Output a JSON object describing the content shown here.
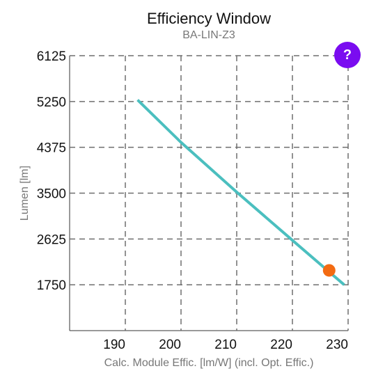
{
  "header": {
    "title": "Efficiency Window",
    "subtitle": "BA-LIN-Z3"
  },
  "help_button": {
    "label": "?"
  },
  "colors": {
    "line": "#4bbfbf",
    "marker": "#f36b12",
    "grid": "#6e6e6e",
    "help": "#7a0cf0"
  },
  "chart_data": {
    "type": "line",
    "title": "Efficiency Window",
    "subtitle": "BA-LIN-Z3",
    "xlabel": "Calc. Module Effic. [lm/W] (incl. Opt. Effic.)",
    "ylabel": "Lumen [lm]",
    "xlim": [
      180,
      230
    ],
    "ylim": [
      875,
      6125
    ],
    "x_ticks": [
      190,
      200,
      210,
      220,
      230
    ],
    "y_ticks": [
      1750,
      2625,
      3500,
      4375,
      5250,
      6125
    ],
    "grid": true,
    "series": [
      {
        "x": [
          192.2,
          200,
          210,
          220,
          229.3
        ],
        "y": [
          5280,
          4470,
          3520,
          2600,
          1750
        ]
      }
    ],
    "highlight_point": {
      "x": 226.6,
      "y": 2025
    }
  }
}
